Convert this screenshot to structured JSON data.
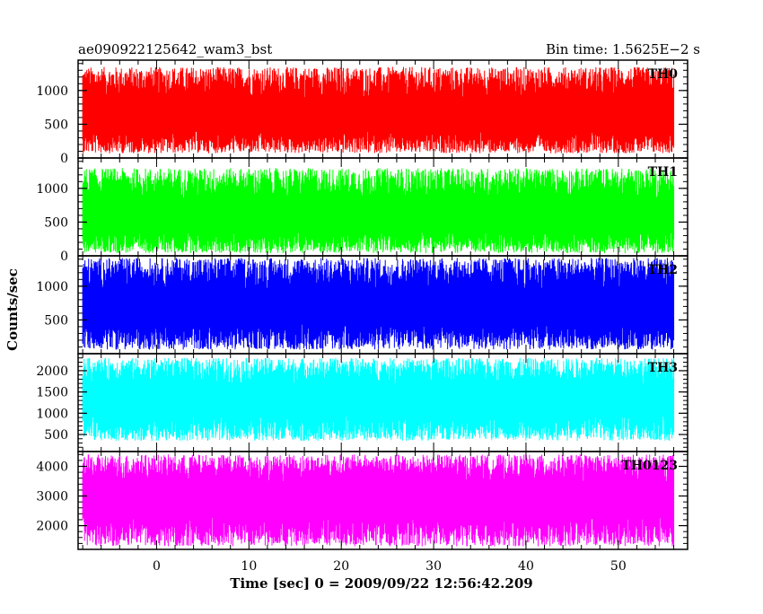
{
  "header": {
    "left": "ae090922125642_wam3_bst",
    "right": "Bin time: 1.5625E−2 s"
  },
  "chart_data": {
    "type": "line",
    "xlabel": "Time [sec] 0 = 2009/09/22 12:56:42.209",
    "ylabel": "Counts/sec",
    "xlim": [
      -8.5,
      57.5
    ],
    "x_range_of_data": [
      -8,
      56
    ],
    "x_ticks": [
      0,
      10,
      20,
      30,
      40,
      50
    ],
    "grid": false,
    "panels": [
      {
        "name": "TH0",
        "color": "#ff0000",
        "ylim": [
          0,
          1450
        ],
        "y_ticks": [
          0,
          500,
          1000
        ],
        "y_tick_labels": [
          "0",
          "500",
          "1000"
        ],
        "mean": 600,
        "low": 70,
        "high": 1350
      },
      {
        "name": "TH1",
        "color": "#00ff00",
        "ylim": [
          0,
          1450
        ],
        "y_ticks": [
          0,
          500,
          1000
        ],
        "y_tick_labels": [
          "0",
          "500",
          "1000"
        ],
        "mean": 560,
        "low": 40,
        "high": 1300
      },
      {
        "name": "TH2",
        "color": "#0000ff",
        "ylim": [
          0,
          1450
        ],
        "y_ticks": [
          500,
          1000
        ],
        "y_tick_labels": [
          "500",
          "1000"
        ],
        "mean": 680,
        "low": 60,
        "high": 1420
      },
      {
        "name": "TH3",
        "color": "#00ffff",
        "ylim": [
          100,
          2400
        ],
        "y_ticks": [
          500,
          1000,
          1500,
          2000
        ],
        "y_tick_labels": [
          "500",
          "1000",
          "1500",
          "2000"
        ],
        "mean": 1300,
        "low": 350,
        "high": 2300
      },
      {
        "name": "TH0123",
        "color": "#ff00ff",
        "ylim": [
          1200,
          4500
        ],
        "y_ticks": [
          2000,
          3000,
          4000
        ],
        "y_tick_labels": [
          "2000",
          "3000",
          "4000"
        ],
        "mean": 2900,
        "low": 1300,
        "high": 4400
      }
    ],
    "series_note": "",
    "x_tick_labels": [
      "0",
      "10",
      "20",
      "30",
      "40",
      "50"
    ]
  }
}
